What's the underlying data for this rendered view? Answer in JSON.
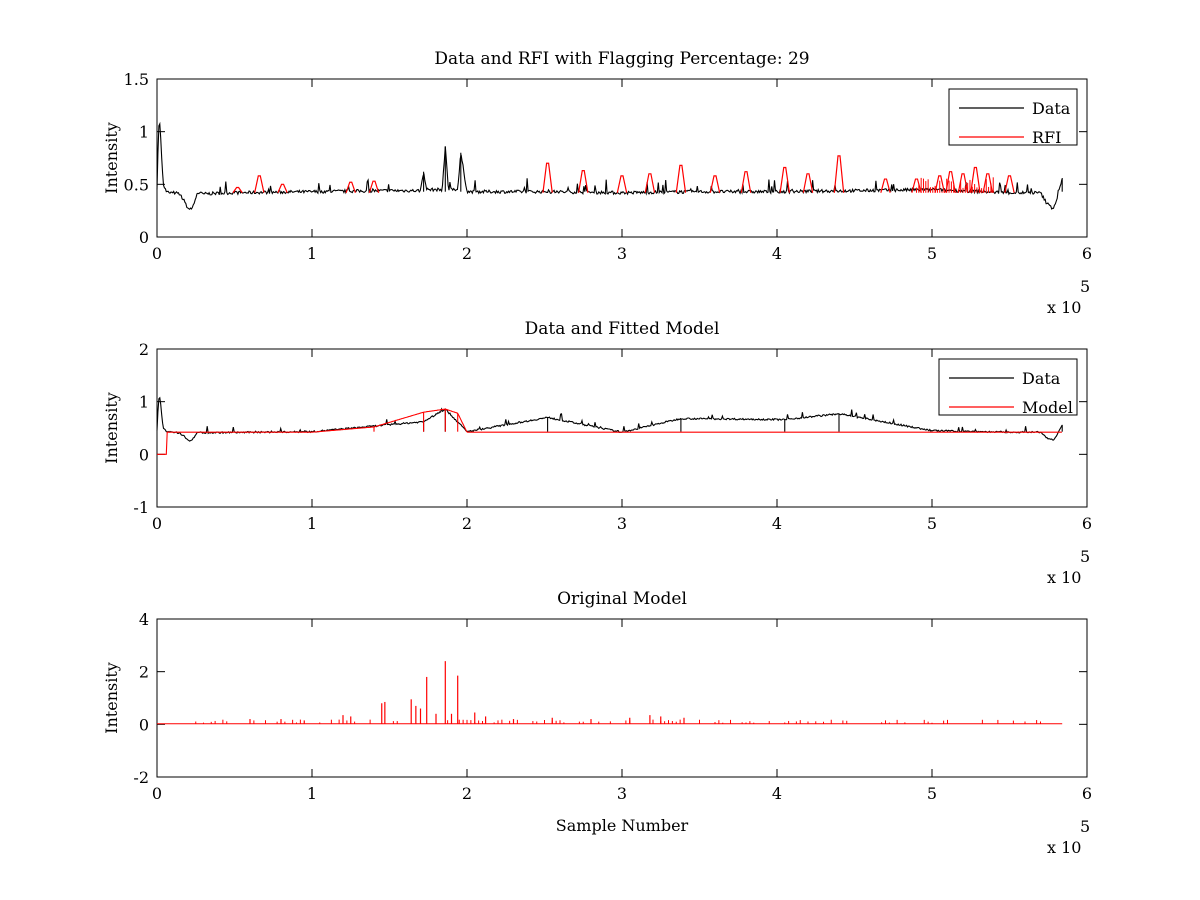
{
  "chart_data": [
    {
      "type": "line",
      "title": "Data and RFI with Flagging Percentage: 29",
      "xlabel": "",
      "ylabel": "Intensity",
      "x_multiplier": "x 10",
      "x_multiplier_exp": "5",
      "xlim": [
        0,
        600000
      ],
      "ylim": [
        0,
        1.5
      ],
      "xticks": [
        0,
        100000,
        200000,
        300000,
        400000,
        500000,
        600000
      ],
      "xtick_labels": [
        "0",
        "1",
        "2",
        "3",
        "4",
        "5",
        "6"
      ],
      "yticks": [
        0,
        0.5,
        1,
        1.5
      ],
      "ytick_labels": [
        "0",
        "0.5",
        "1",
        "1.5"
      ],
      "legend": {
        "position": "top-right",
        "entries": [
          "Data",
          "RFI"
        ]
      },
      "series": [
        {
          "name": "Data",
          "color": "#000000",
          "x": [
            0,
            1000,
            2000,
            3000,
            4000,
            6000,
            8000,
            10000,
            12000,
            15000,
            18000,
            20000,
            22000,
            24000,
            26000,
            30000,
            50000,
            100000,
            150000,
            170000,
            172000,
            174000,
            180000,
            184000,
            186000,
            188000,
            190000,
            194000,
            196000,
            200000,
            250000,
            300000,
            350000,
            400000,
            450000,
            500000,
            550000,
            570000,
            574000,
            578000,
            580000,
            582000,
            584000
          ],
          "y": [
            0.45,
            1.05,
            1.08,
            0.75,
            0.5,
            0.43,
            0.42,
            0.42,
            0.42,
            0.4,
            0.33,
            0.27,
            0.26,
            0.32,
            0.42,
            0.41,
            0.42,
            0.43,
            0.44,
            0.44,
            0.62,
            0.45,
            0.45,
            0.45,
            0.86,
            0.45,
            0.46,
            0.45,
            0.8,
            0.43,
            0.43,
            0.42,
            0.43,
            0.43,
            0.44,
            0.45,
            0.42,
            0.42,
            0.32,
            0.27,
            0.33,
            0.45,
            0.56
          ]
        },
        {
          "name": "RFI",
          "color": "#ff0000",
          "x": [
            52000,
            66000,
            81000,
            125000,
            140000,
            252000,
            275000,
            300000,
            318000,
            338000,
            360000,
            380000,
            405000,
            420000,
            440000,
            470000,
            490000,
            505000,
            512000,
            520000,
            528000,
            536000,
            550000
          ],
          "y": [
            0.47,
            0.58,
            0.5,
            0.52,
            0.53,
            0.7,
            0.63,
            0.58,
            0.6,
            0.68,
            0.58,
            0.62,
            0.66,
            0.6,
            0.77,
            0.55,
            0.55,
            0.58,
            0.62,
            0.6,
            0.66,
            0.6,
            0.58
          ]
        }
      ]
    },
    {
      "type": "line",
      "title": "Data and Fitted Model",
      "xlabel": "",
      "ylabel": "Intensity",
      "x_multiplier": "x 10",
      "x_multiplier_exp": "5",
      "xlim": [
        0,
        600000
      ],
      "ylim": [
        -1,
        2
      ],
      "xticks": [
        0,
        100000,
        200000,
        300000,
        400000,
        500000,
        600000
      ],
      "xtick_labels": [
        "0",
        "1",
        "2",
        "3",
        "4",
        "5",
        "6"
      ],
      "yticks": [
        -1,
        0,
        1,
        2
      ],
      "ytick_labels": [
        "-1",
        "0",
        "1",
        "2"
      ],
      "legend": {
        "position": "top-right",
        "entries": [
          "Data",
          "Model"
        ]
      },
      "series": [
        {
          "name": "Data",
          "color": "#000000",
          "x": [
            0,
            1000,
            2000,
            3000,
            4000,
            6000,
            8000,
            10000,
            12000,
            15000,
            18000,
            20000,
            22000,
            24000,
            26000,
            30000,
            100000,
            172000,
            186000,
            200000,
            252000,
            300000,
            338000,
            405000,
            440000,
            500000,
            550000,
            570000,
            574000,
            578000,
            580000,
            582000,
            584000
          ],
          "y": [
            0.45,
            1.05,
            1.08,
            0.75,
            0.5,
            0.43,
            0.42,
            0.42,
            0.42,
            0.4,
            0.33,
            0.27,
            0.26,
            0.32,
            0.42,
            0.41,
            0.43,
            0.62,
            0.86,
            0.43,
            0.7,
            0.42,
            0.68,
            0.66,
            0.77,
            0.45,
            0.42,
            0.42,
            0.32,
            0.27,
            0.33,
            0.45,
            0.56
          ]
        },
        {
          "name": "Model",
          "color": "#ff0000",
          "x": [
            0,
            6000,
            6001,
            100000,
            140000,
            172000,
            186000,
            194000,
            200000,
            300000,
            400000,
            500000,
            584000
          ],
          "y": [
            0.0,
            0.0,
            0.42,
            0.42,
            0.52,
            0.8,
            0.86,
            0.78,
            0.42,
            0.42,
            0.42,
            0.42,
            0.42
          ]
        }
      ]
    },
    {
      "type": "line",
      "title": "Original Model",
      "xlabel": "Sample Number",
      "ylabel": "Intensity",
      "x_multiplier": "x 10",
      "x_multiplier_exp": "5",
      "xlim": [
        0,
        600000
      ],
      "ylim": [
        -2,
        4
      ],
      "xticks": [
        0,
        100000,
        200000,
        300000,
        400000,
        500000,
        600000
      ],
      "xtick_labels": [
        "0",
        "1",
        "2",
        "3",
        "4",
        "5",
        "6"
      ],
      "yticks": [
        -2,
        0,
        2,
        4
      ],
      "ytick_labels": [
        "-2",
        "0",
        "2",
        "4"
      ],
      "series": [
        {
          "name": "",
          "color": "#ff0000",
          "baseline": 0.02,
          "xlim_data": [
            0,
            584000
          ],
          "spikes_x": [
            60000,
            80000,
            95000,
            120000,
            125000,
            145000,
            147000,
            164000,
            167000,
            170000,
            174000,
            180000,
            186000,
            190000,
            194000,
            205000,
            212000,
            230000,
            255000,
            280000,
            305000,
            318000,
            325000,
            340000
          ],
          "spikes_y": [
            0.2,
            0.2,
            0.15,
            0.35,
            0.3,
            0.8,
            0.85,
            0.95,
            0.7,
            0.6,
            1.8,
            0.4,
            2.4,
            0.4,
            1.85,
            0.45,
            0.3,
            0.2,
            0.25,
            0.2,
            0.25,
            0.35,
            0.3,
            0.25
          ]
        }
      ]
    }
  ]
}
